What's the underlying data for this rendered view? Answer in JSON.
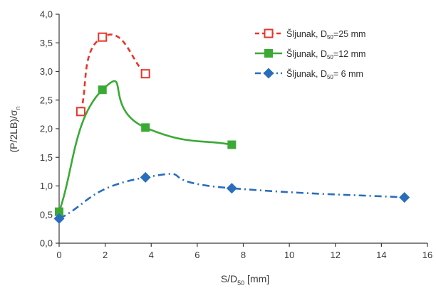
{
  "chart_data": {
    "type": "line",
    "title": "",
    "xlabel": {
      "pre": "S/D",
      "sub": "50",
      "post": " [mm]"
    },
    "ylabel": {
      "pre": "(P/2LB)/σ",
      "sub": "n"
    },
    "xlim": [
      0,
      16
    ],
    "ylim": [
      0,
      4
    ],
    "x_ticks": [
      "0",
      "2",
      "4",
      "6",
      "8",
      "10",
      "12",
      "14",
      "16"
    ],
    "y_ticks": [
      "0,0",
      "0,5",
      "1,0",
      "1,5",
      "2,0",
      "2,5",
      "3,0",
      "3,5",
      "4,0"
    ],
    "grid": false,
    "legend_position": "top-right",
    "series": [
      {
        "name": {
          "pre": "Šljunak, D",
          "sub": "50",
          "post": "=25 mm"
        },
        "color": "#e8352a",
        "line_style": "dashed",
        "marker": "square-open",
        "x": [
          0.94,
          1.88,
          3.75
        ],
        "y": [
          2.3,
          3.6,
          2.96
        ]
      },
      {
        "name": {
          "pre": "Šljunak, D",
          "sub": "50",
          "post": "=12 mm"
        },
        "color": "#3aaa35",
        "line_style": "solid",
        "marker": "square-filled",
        "x": [
          0,
          1.88,
          3.75,
          7.5
        ],
        "y": [
          0.55,
          2.68,
          2.02,
          1.72
        ]
      },
      {
        "name": {
          "pre": "Šljunak, D",
          "sub": "50",
          "post": "= 6 mm"
        },
        "color": "#2a6ebb",
        "line_style": "dash-dot",
        "marker": "diamond-filled",
        "x": [
          0,
          3.75,
          7.5,
          15
        ],
        "y": [
          0.43,
          1.15,
          0.96,
          0.8
        ]
      }
    ]
  }
}
